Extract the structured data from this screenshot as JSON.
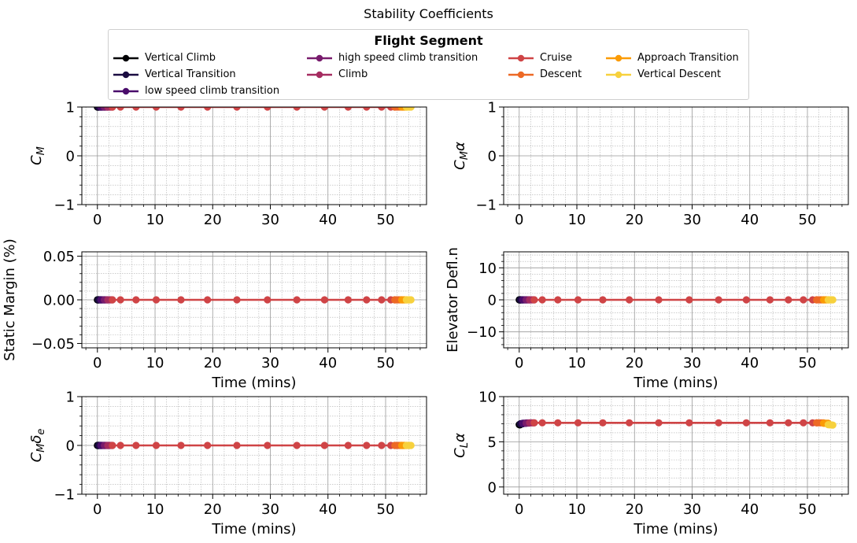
{
  "suptitle": "Stability Coefficients",
  "legend": {
    "title": "Flight Segment",
    "columns": 4
  },
  "segments": [
    {
      "name": "Vertical Climb",
      "color": "#000004",
      "t": [
        0.0,
        0.05,
        0.1,
        0.15,
        0.2
      ]
    },
    {
      "name": "Vertical Transition",
      "color": "#1b0c41",
      "t": [
        0.2,
        0.3,
        0.4,
        0.5,
        0.6
      ]
    },
    {
      "name": "low speed climb transition",
      "color": "#4a0c6b",
      "t": [
        0.6,
        0.75,
        0.9,
        1.05,
        1.2
      ]
    },
    {
      "name": "high speed climb transition",
      "color": "#781c6d",
      "t": [
        1.2,
        1.35,
        1.5,
        1.65,
        1.8
      ]
    },
    {
      "name": "Climb",
      "color": "#a52c60",
      "t": [
        1.8,
        2.0,
        2.2,
        2.4,
        2.6
      ]
    },
    {
      "name": "Cruise",
      "color": "#cf4446",
      "t": [
        2.6,
        4.0,
        6.7,
        10.2,
        14.5,
        19.1,
        24.2,
        29.5,
        34.6,
        39.4,
        43.5,
        46.7,
        49.3,
        50.9,
        51.6
      ]
    },
    {
      "name": "Descent",
      "color": "#ed6925",
      "t": [
        51.6,
        51.9,
        52.2,
        52.5,
        52.8
      ]
    },
    {
      "name": "Approach Transition",
      "color": "#fb9b06",
      "t": [
        52.8,
        53.0,
        53.2,
        53.4,
        53.6
      ]
    },
    {
      "name": "Vertical Descent",
      "color": "#f7d13d",
      "t": [
        53.6,
        53.8,
        54.0,
        54.2,
        54.4
      ]
    }
  ],
  "chart_data": [
    {
      "type": "line",
      "id": "cm",
      "title": "",
      "ylabel": "C_M",
      "xlabel": "",
      "xlim": [
        -2.7,
        57.1
      ],
      "ylim": [
        -1,
        1
      ],
      "yticks": [
        -1,
        0,
        1
      ],
      "xticks": [
        0,
        10,
        20,
        30,
        40,
        50
      ],
      "grid": true,
      "y_by_segment": [
        1,
        1,
        1,
        1,
        1,
        1,
        1,
        1,
        1
      ],
      "y_end": null
    },
    {
      "type": "line",
      "id": "cm_alpha",
      "title": "",
      "ylabel": "C_Mα",
      "xlabel": "",
      "xlim": [
        -2.7,
        57.1
      ],
      "ylim": [
        -1,
        1
      ],
      "yticks": [
        -1,
        0,
        1
      ],
      "xticks": [
        0,
        10,
        20,
        30,
        40,
        50
      ],
      "grid": true,
      "y_by_segment": null,
      "y_end": null
    },
    {
      "type": "line",
      "id": "static_margin",
      "title": "",
      "ylabel": "Static Margin (%)",
      "xlabel": "Time (mins)",
      "xlim": [
        -2.7,
        57.1
      ],
      "ylim": [
        -0.055,
        0.055
      ],
      "yticks": [
        -0.05,
        0.0,
        0.05
      ],
      "ytick_labels": [
        "−0.05",
        "0.00",
        "0.05"
      ],
      "xticks": [
        0,
        10,
        20,
        30,
        40,
        50
      ],
      "grid": true,
      "y_by_segment": [
        0,
        0,
        0,
        0,
        0,
        0,
        0,
        0,
        0
      ],
      "y_end": null
    },
    {
      "type": "line",
      "id": "elevator_defl",
      "title": "",
      "ylabel": "Elevator Defl.n",
      "xlabel": "Time (mins)",
      "xlim": [
        -2.7,
        57.1
      ],
      "ylim": [
        -15,
        15
      ],
      "yticks": [
        -10,
        0,
        10
      ],
      "xticks": [
        0,
        10,
        20,
        30,
        40,
        50
      ],
      "grid": true,
      "y_by_segment": [
        0,
        0,
        0,
        0,
        0,
        0,
        0,
        0,
        0
      ],
      "y_end": null
    },
    {
      "type": "line",
      "id": "cm_delta_e",
      "title": "",
      "ylabel": "C_Mδ_e",
      "xlabel": "Time (mins)",
      "xlim": [
        -2.7,
        57.1
      ],
      "ylim": [
        -1,
        1
      ],
      "yticks": [
        -1,
        0,
        1
      ],
      "xticks": [
        0,
        10,
        20,
        30,
        40,
        50
      ],
      "grid": true,
      "y_by_segment": [
        0,
        0,
        0,
        0,
        0,
        0,
        0,
        0,
        0
      ],
      "y_end": null
    },
    {
      "type": "line",
      "id": "cl_alpha",
      "title": "",
      "ylabel": "C_Lα",
      "xlabel": "Time (mins)",
      "xlim": [
        -2.7,
        57.1
      ],
      "ylim": [
        -0.8,
        10
      ],
      "yticks": [
        0,
        5,
        10
      ],
      "xticks": [
        0,
        10,
        20,
        30,
        40,
        50
      ],
      "grid": true,
      "y_by_segment": [
        6.9,
        7.0,
        7.05,
        7.08,
        7.1,
        7.1,
        7.1,
        7.05,
        6.9
      ],
      "y_end": 6.85
    }
  ]
}
